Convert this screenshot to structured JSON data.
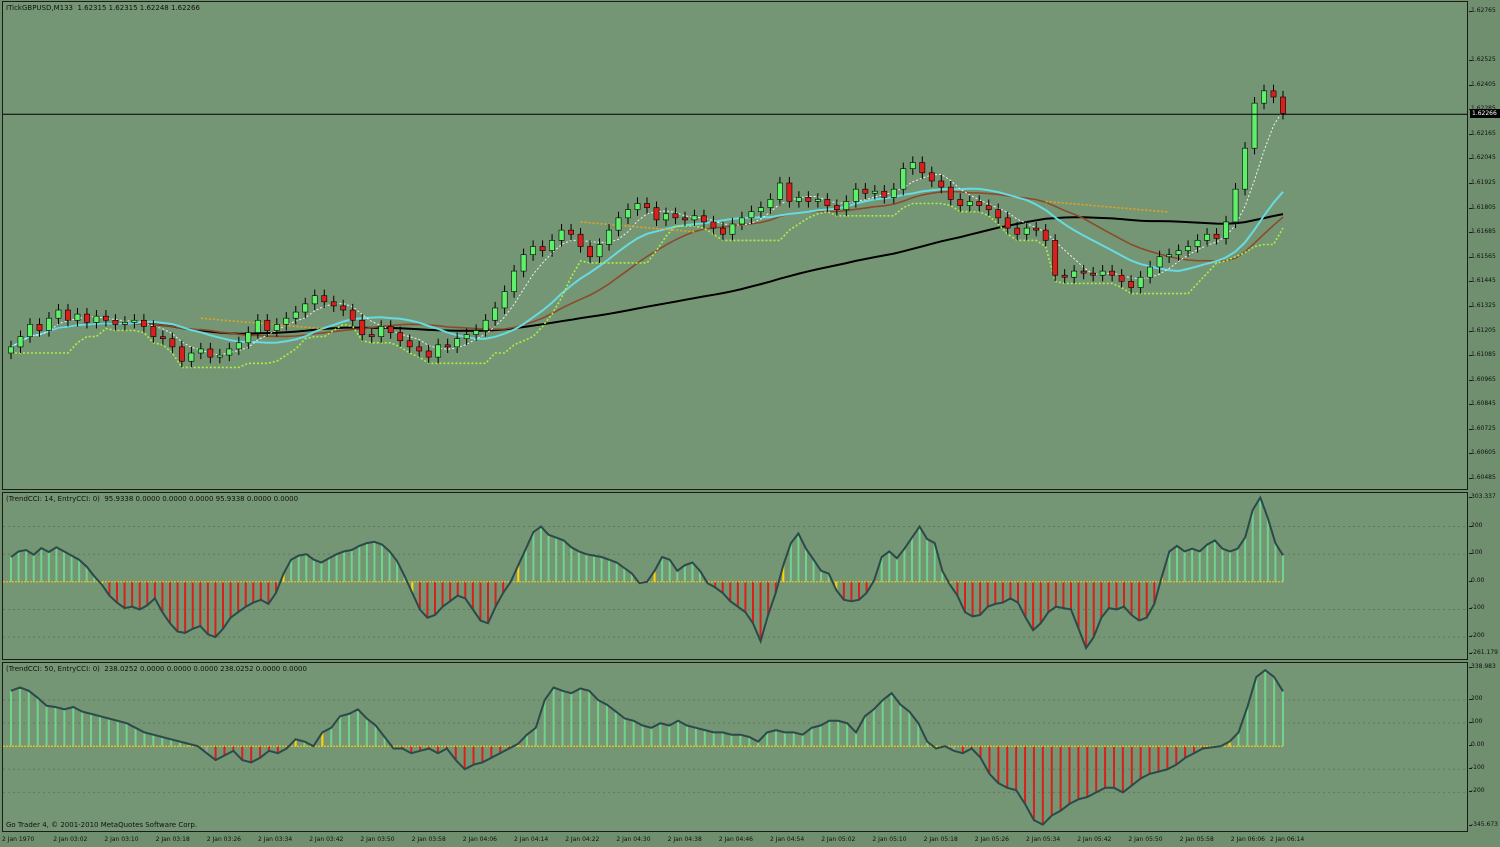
{
  "chart_data": [
    {
      "type": "candlestick",
      "title": "ITickGBPUSD,M133  1.62315 1.62315 1.62248 1.62266",
      "symbol": "ITickGBPUSD",
      "timeframe": "M133",
      "ohlc_current": {
        "open": 1.62315,
        "high": 1.62315,
        "low": 1.62248,
        "close": 1.62266
      },
      "current_price": "1.62266",
      "ylim": [
        1.60485,
        1.62765
      ],
      "y_ticks": [
        "1.62765",
        "1.62525",
        "1.62405",
        "1.62285",
        "1.62165",
        "1.62045",
        "1.61925",
        "1.61805",
        "1.61685",
        "1.61565",
        "1.61445",
        "1.61325",
        "1.61205",
        "1.61085",
        "1.60965",
        "1.60845",
        "1.60725",
        "1.60605",
        "1.60485"
      ],
      "grid": false,
      "closes": [
        1.6113,
        1.6118,
        1.6124,
        1.6121,
        1.6127,
        1.6131,
        1.6126,
        1.6129,
        1.6125,
        1.6128,
        1.6126,
        1.6124,
        1.6125,
        1.6126,
        1.6123,
        1.6118,
        1.6117,
        1.6113,
        1.6106,
        1.611,
        1.6112,
        1.6108,
        1.6109,
        1.6112,
        1.6115,
        1.612,
        1.6126,
        1.6121,
        1.6124,
        1.6127,
        1.613,
        1.6134,
        1.6138,
        1.6135,
        1.6133,
        1.6131,
        1.6126,
        1.6119,
        1.6118,
        1.6123,
        1.612,
        1.6116,
        1.6113,
        1.6111,
        1.6108,
        1.6114,
        1.6113,
        1.6117,
        1.6119,
        1.6121,
        1.6126,
        1.6132,
        1.614,
        1.615,
        1.6158,
        1.6162,
        1.616,
        1.6165,
        1.617,
        1.6168,
        1.6162,
        1.6157,
        1.6163,
        1.617,
        1.6176,
        1.618,
        1.6183,
        1.6181,
        1.6175,
        1.6178,
        1.6176,
        1.6175,
        1.6177,
        1.6174,
        1.6171,
        1.6168,
        1.6173,
        1.6176,
        1.6179,
        1.6181,
        1.6185,
        1.6193,
        1.6184,
        1.6186,
        1.6184,
        1.6185,
        1.6182,
        1.618,
        1.6184,
        1.619,
        1.6188,
        1.6189,
        1.6186,
        1.619,
        1.62,
        1.6203,
        1.6198,
        1.6194,
        1.6191,
        1.6185,
        1.6182,
        1.6184,
        1.6182,
        1.618,
        1.6176,
        1.6171,
        1.6168,
        1.6171,
        1.617,
        1.6165,
        1.6148,
        1.6147,
        1.615,
        1.6149,
        1.6148,
        1.615,
        1.6148,
        1.6145,
        1.6142,
        1.6147,
        1.6152,
        1.6157,
        1.6158,
        1.616,
        1.6162,
        1.6165,
        1.6168,
        1.6166,
        1.6174,
        1.619,
        1.621,
        1.6232,
        1.6238,
        1.6235,
        1.6227
      ],
      "overlays": [
        {
          "name": "MA-fast-white-dotted",
          "color": "#f2f2f2",
          "style": "dotted"
        },
        {
          "name": "MA-cyan",
          "color": "#67dbe2",
          "style": "solid"
        },
        {
          "name": "MA-brown",
          "color": "#8b4a2b",
          "style": "solid"
        },
        {
          "name": "MA-black",
          "color": "#000000",
          "style": "solid"
        },
        {
          "name": "step-orange",
          "color": "#e8a21c",
          "style": "dotted"
        },
        {
          "name": "step-lime",
          "color": "#aaf046",
          "style": "dotted"
        }
      ],
      "colors": {
        "bull": "#5ef06a",
        "bear": "#d8201c",
        "wick": "#000000"
      }
    },
    {
      "type": "histogram",
      "title": "(TrendCCI: 14, EntryCCI: 0)  95.9338 0.0000 0.0000 0.0000 95.9338 0.0000 0.0000",
      "ylim": [
        -261.179,
        303.337
      ],
      "y_ticks": [
        "303.337",
        "200",
        "100",
        "0.00",
        "-100",
        "-200",
        "-261.179"
      ],
      "values": [
        90,
        110,
        115,
        98,
        122,
        108,
        125,
        110,
        95,
        80,
        55,
        20,
        -10,
        -50,
        -75,
        -95,
        -90,
        -100,
        -85,
        -60,
        -110,
        -150,
        -180,
        -185,
        -170,
        -160,
        -190,
        -200,
        -170,
        -130,
        -110,
        -90,
        -75,
        -65,
        -80,
        -40,
        30,
        80,
        95,
        100,
        80,
        70,
        85,
        100,
        110,
        115,
        130,
        140,
        145,
        135,
        110,
        75,
        20,
        -40,
        -100,
        -130,
        -120,
        -90,
        -70,
        -50,
        -60,
        -100,
        -140,
        -150,
        -90,
        -40,
        0,
        60,
        120,
        180,
        200,
        170,
        160,
        150,
        125,
        110,
        100,
        95,
        90,
        80,
        70,
        50,
        30,
        -5,
        0,
        40,
        90,
        80,
        40,
        60,
        70,
        40,
        -5,
        -20,
        -40,
        -70,
        -90,
        -110,
        -150,
        -215,
        -120,
        -40,
        60,
        140,
        175,
        120,
        80,
        40,
        30,
        -30,
        -65,
        -70,
        -65,
        -40,
        5,
        90,
        110,
        85,
        120,
        160,
        200,
        155,
        140,
        40,
        -10,
        -50,
        -110,
        -125,
        -120,
        -90,
        -80,
        -75,
        -60,
        -75,
        -130,
        -175,
        -150,
        -110,
        -90,
        -95,
        -100,
        -170,
        -240,
        -200,
        -130,
        -95,
        -100,
        -90,
        -120,
        -140,
        -130,
        -80,
        20,
        110,
        130,
        110,
        120,
        110,
        135,
        150,
        120,
        110,
        120,
        160,
        260,
        305,
        230,
        140,
        96
      ]
    },
    {
      "type": "histogram",
      "title": "(TrendCCI: 50, EntryCCI: 0)  238.0252 0.0000 0.0000 0.0000 238.0252 0.0000 0.0000",
      "ylim": [
        -345.673,
        338.983
      ],
      "y_ticks": [
        "338.983",
        "200",
        "100",
        "0.00",
        "-100",
        "-200",
        "-345.673"
      ],
      "values": [
        240,
        255,
        240,
        210,
        175,
        170,
        160,
        170,
        150,
        140,
        130,
        120,
        110,
        100,
        80,
        60,
        50,
        40,
        30,
        20,
        10,
        0,
        -30,
        -60,
        -40,
        -20,
        -60,
        -70,
        -50,
        -20,
        -30,
        -10,
        30,
        20,
        0,
        60,
        80,
        130,
        140,
        160,
        120,
        90,
        40,
        -10,
        -10,
        -30,
        -20,
        -10,
        -30,
        -10,
        -60,
        -100,
        -80,
        -70,
        -50,
        -30,
        -10,
        10,
        50,
        80,
        200,
        255,
        240,
        230,
        250,
        240,
        200,
        180,
        150,
        120,
        110,
        90,
        80,
        100,
        90,
        110,
        90,
        80,
        70,
        60,
        60,
        50,
        50,
        40,
        20,
        60,
        70,
        60,
        60,
        50,
        80,
        90,
        110,
        110,
        100,
        60,
        130,
        160,
        200,
        230,
        180,
        150,
        100,
        20,
        -10,
        0,
        -20,
        -30,
        -10,
        -50,
        -120,
        -160,
        -180,
        -190,
        -250,
        -320,
        -340,
        -300,
        -280,
        -250,
        -230,
        -220,
        -200,
        -180,
        -180,
        -200,
        -170,
        -140,
        -120,
        -110,
        -100,
        -80,
        -50,
        -30,
        -10,
        -5,
        0,
        20,
        60,
        170,
        300,
        330,
        300,
        238
      ]
    }
  ],
  "time_axis": {
    "labels": [
      "2 Jan 1970",
      "2 Jan 03:02",
      "2 Jan 03:10",
      "2 Jan 03:18",
      "2 Jan 03:26",
      "2 Jan 03:34",
      "2 Jan 03:42",
      "2 Jan 03:50",
      "2 Jan 03:58",
      "2 Jan 04:06",
      "2 Jan 04:14",
      "2 Jan 04:22",
      "2 Jan 04:30",
      "2 Jan 04:38",
      "2 Jan 04:46",
      "2 Jan 04:54",
      "2 Jan 05:02",
      "2 Jan 05:10",
      "2 Jan 05:18",
      "2 Jan 05:26",
      "2 Jan 05:34",
      "2 Jan 05:42",
      "2 Jan 05:50",
      "2 Jan 05:58",
      "2 Jan 06:06",
      "2 Jan 06:14"
    ]
  },
  "footer": {
    "copyright": "Go Trader 4, © 2001-2010 MetaQuotes Software Corp."
  },
  "colors": {
    "background": "#759674",
    "cci_positive": "#6fd38b",
    "cci_negative": "#d8201c",
    "cci_transition": "#9aa0a6",
    "cci_line": "#2b4a4a",
    "zero_line": "#f0c419",
    "signal_bar": "#ffd200"
  }
}
